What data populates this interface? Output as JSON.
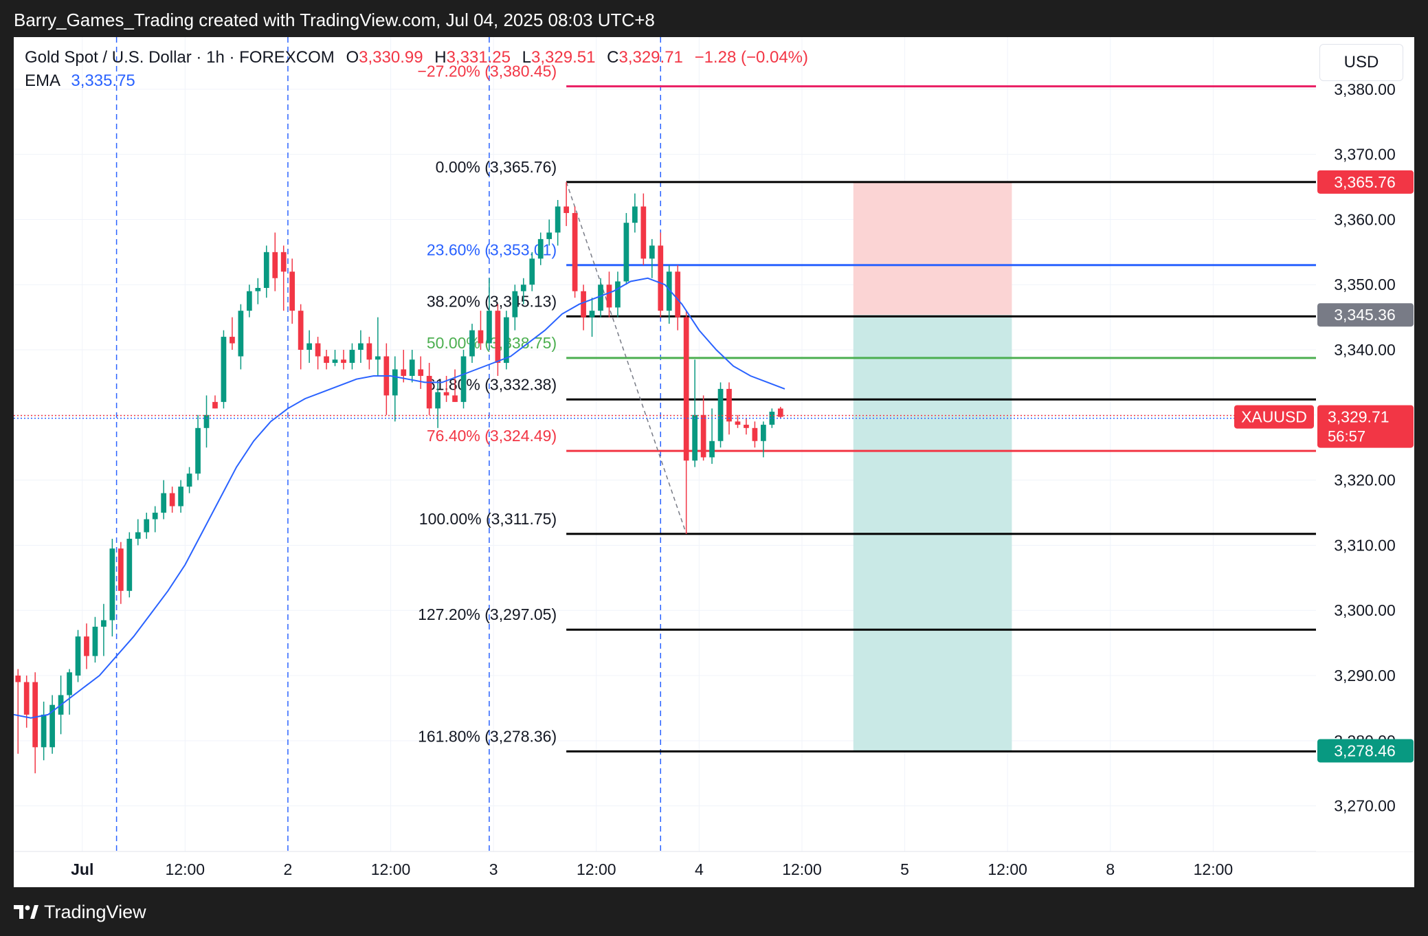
{
  "caption": "Barry_Games_Trading created with TradingView.com, Jul 04, 2025 08:03 UTC+8",
  "brand": "TradingView",
  "legend": {
    "symbol": "Gold Spot / U.S. Dollar · 1h · FOREXCOM",
    "o_label": "O",
    "o_value": "3,330.99",
    "h_label": "H",
    "h_value": "3,331.25",
    "l_label": "L",
    "l_value": "3,329.51",
    "c_label": "C",
    "c_value": "3,329.71",
    "change": "−1.28 (−0.04%)",
    "ema_label": "EMA",
    "ema_value": "3,335.75"
  },
  "currency": "USD",
  "colors": {
    "up": "#089981",
    "down": "#f23645",
    "ema": "#2962ff",
    "fib_black": "#000000",
    "fib_red": "#f23645",
    "fib_blue": "#2962ff",
    "fib_green": "#4caf50",
    "fib_pink": "#e91e63",
    "stop_zone": "#fbd4d4",
    "target_zone": "#c9e9e6"
  },
  "chart_data": {
    "type": "candlestick",
    "symbol": "XAUUSD",
    "timeframe": "1h",
    "y_axis": {
      "ticks": [
        "3,380.00",
        "3,370.00",
        "3,360.00",
        "3,350.00",
        "3,340.00",
        "3,330.00",
        "3,320.00",
        "3,310.00",
        "3,300.00",
        "3,290.00",
        "3,280.00",
        "3,270.00"
      ],
      "tick_values": [
        3380,
        3370,
        3360,
        3350,
        3340,
        3330,
        3320,
        3310,
        3300,
        3290,
        3280,
        3270
      ],
      "range": [
        3263,
        3388
      ]
    },
    "x_axis": {
      "ticks": [
        "Jul",
        "12:00",
        "2",
        "12:00",
        "3",
        "12:00",
        "4",
        "12:00",
        "5",
        "12:00",
        "8",
        "12:00"
      ],
      "tick_hours": [
        0,
        12,
        24,
        36,
        48,
        60,
        72,
        84,
        96,
        108,
        120,
        132
      ],
      "range_hours": [
        -8,
        144
      ]
    },
    "candles": [
      {
        "t": -7.5,
        "o": 3290.0,
        "h": 3291.0,
        "l": 3278.0,
        "c": 3289.0
      },
      {
        "t": -6.5,
        "o": 3289.0,
        "h": 3290.0,
        "l": 3282.0,
        "c": 3284.0
      },
      {
        "t": -5.5,
        "o": 3289.0,
        "h": 3290.5,
        "l": 3275.0,
        "c": 3279.0
      },
      {
        "t": -4.5,
        "o": 3279.0,
        "h": 3286.0,
        "l": 3277.0,
        "c": 3284.0
      },
      {
        "t": -3.5,
        "o": 3279.0,
        "h": 3287.0,
        "l": 3278.0,
        "c": 3285.5
      },
      {
        "t": -2.5,
        "o": 3284.0,
        "h": 3290.0,
        "l": 3281.0,
        "c": 3287.0
      },
      {
        "t": -1.5,
        "o": 3287.0,
        "h": 3291.0,
        "l": 3284.0,
        "c": 3290.5
      },
      {
        "t": -0.5,
        "o": 3290.0,
        "h": 3297.0,
        "l": 3289.0,
        "c": 3296.0
      },
      {
        "t": 0.5,
        "o": 3296.0,
        "h": 3298.0,
        "l": 3291.0,
        "c": 3293.0
      },
      {
        "t": 1.5,
        "o": 3293.0,
        "h": 3299.0,
        "l": 3292.0,
        "c": 3297.5
      },
      {
        "t": 2.5,
        "o": 3297.5,
        "h": 3301.0,
        "l": 3293.0,
        "c": 3298.5
      },
      {
        "t": 3.5,
        "o": 3298.5,
        "h": 3311.0,
        "l": 3296.0,
        "c": 3309.5
      },
      {
        "t": 4.5,
        "o": 3309.5,
        "h": 3310.5,
        "l": 3301.0,
        "c": 3303.0
      },
      {
        "t": 5.5,
        "o": 3303.0,
        "h": 3312.0,
        "l": 3302.0,
        "c": 3311.0
      },
      {
        "t": 6.5,
        "o": 3311.0,
        "h": 3314.0,
        "l": 3310.0,
        "c": 3312.0
      },
      {
        "t": 7.5,
        "o": 3312.0,
        "h": 3315.0,
        "l": 3311.0,
        "c": 3314.0
      },
      {
        "t": 8.5,
        "o": 3314.0,
        "h": 3316.0,
        "l": 3312.0,
        "c": 3315.0
      },
      {
        "t": 9.5,
        "o": 3315.0,
        "h": 3320.0,
        "l": 3314.0,
        "c": 3318.0
      },
      {
        "t": 10.5,
        "o": 3318.0,
        "h": 3319.0,
        "l": 3315.0,
        "c": 3316.0
      },
      {
        "t": 11.5,
        "o": 3316.0,
        "h": 3320.0,
        "l": 3315.0,
        "c": 3319.0
      },
      {
        "t": 12.5,
        "o": 3319.0,
        "h": 3322.0,
        "l": 3318.0,
        "c": 3321.0
      },
      {
        "t": 13.5,
        "o": 3321.0,
        "h": 3330.0,
        "l": 3320.0,
        "c": 3328.0
      },
      {
        "t": 14.5,
        "o": 3328.0,
        "h": 3333.0,
        "l": 3325.0,
        "c": 3330.0
      },
      {
        "t": 15.5,
        "o": 3332.0,
        "h": 3333.0,
        "l": 3331.0,
        "c": 3331.0
      },
      {
        "t": 16.5,
        "o": 3332.0,
        "h": 3343.0,
        "l": 3331.0,
        "c": 3342.0
      },
      {
        "t": 17.5,
        "o": 3342.0,
        "h": 3345.0,
        "l": 3340.0,
        "c": 3341.0
      },
      {
        "t": 18.5,
        "o": 3339.0,
        "h": 3347.0,
        "l": 3337.0,
        "c": 3346.0
      },
      {
        "t": 19.5,
        "o": 3346.0,
        "h": 3350.0,
        "l": 3345.0,
        "c": 3349.0
      },
      {
        "t": 20.5,
        "o": 3349.0,
        "h": 3351.0,
        "l": 3347.0,
        "c": 3349.5
      },
      {
        "t": 21.5,
        "o": 3349.5,
        "h": 3356.0,
        "l": 3348.0,
        "c": 3355.0
      },
      {
        "t": 22.5,
        "o": 3355.0,
        "h": 3358.0,
        "l": 3349.0,
        "c": 3351.0
      },
      {
        "t": 23.5,
        "o": 3355.0,
        "h": 3356.0,
        "l": 3346.0,
        "c": 3352.0
      },
      {
        "t": 24.5,
        "o": 3352.0,
        "h": 3354.0,
        "l": 3344.0,
        "c": 3346.0
      },
      {
        "t": 25.5,
        "o": 3346.0,
        "h": 3347.0,
        "l": 3337.0,
        "c": 3340.0
      },
      {
        "t": 26.5,
        "o": 3340.0,
        "h": 3343.0,
        "l": 3338.0,
        "c": 3341.0
      },
      {
        "t": 27.5,
        "o": 3341.0,
        "h": 3342.0,
        "l": 3337.0,
        "c": 3339.0
      },
      {
        "t": 28.5,
        "o": 3339.0,
        "h": 3340.0,
        "l": 3337.0,
        "c": 3338.0
      },
      {
        "t": 29.5,
        "o": 3338.0,
        "h": 3340.0,
        "l": 3337.5,
        "c": 3338.5
      },
      {
        "t": 30.5,
        "o": 3338.5,
        "h": 3340.0,
        "l": 3337.0,
        "c": 3338.0
      },
      {
        "t": 31.5,
        "o": 3338.0,
        "h": 3341.0,
        "l": 3337.0,
        "c": 3340.0
      },
      {
        "t": 32.5,
        "o": 3340.0,
        "h": 3343.0,
        "l": 3338.0,
        "c": 3341.0
      },
      {
        "t": 33.5,
        "o": 3341.0,
        "h": 3342.0,
        "l": 3337.0,
        "c": 3338.5
      },
      {
        "t": 34.5,
        "o": 3338.5,
        "h": 3345.0,
        "l": 3336.0,
        "c": 3339.0
      },
      {
        "t": 35.5,
        "o": 3339.0,
        "h": 3341.0,
        "l": 3330.0,
        "c": 3333.0
      },
      {
        "t": 36.5,
        "o": 3333.0,
        "h": 3339.0,
        "l": 3329.0,
        "c": 3337.0
      },
      {
        "t": 37.5,
        "o": 3337.0,
        "h": 3340.0,
        "l": 3335.0,
        "c": 3336.0
      },
      {
        "t": 38.5,
        "o": 3336.0,
        "h": 3340.0,
        "l": 3335.0,
        "c": 3338.5
      },
      {
        "t": 39.5,
        "o": 3337.0,
        "h": 3339.0,
        "l": 3334.0,
        "c": 3336.0
      },
      {
        "t": 40.5,
        "o": 3336.0,
        "h": 3338.0,
        "l": 3330.0,
        "c": 3331.0
      },
      {
        "t": 41.5,
        "o": 3331.0,
        "h": 3335.0,
        "l": 3328.0,
        "c": 3333.5
      },
      {
        "t": 42.5,
        "o": 3333.5,
        "h": 3336.0,
        "l": 3332.0,
        "c": 3333.0
      },
      {
        "t": 43.5,
        "o": 3333.0,
        "h": 3337.0,
        "l": 3332.0,
        "c": 3332.0
      },
      {
        "t": 44.5,
        "o": 3332.0,
        "h": 3340.0,
        "l": 3331.0,
        "c": 3339.0
      },
      {
        "t": 45.5,
        "o": 3339.0,
        "h": 3344.0,
        "l": 3338.0,
        "c": 3343.0
      },
      {
        "t": 46.5,
        "o": 3343.0,
        "h": 3346.0,
        "l": 3340.0,
        "c": 3341.0
      },
      {
        "t": 47.5,
        "o": 3341.0,
        "h": 3351.0,
        "l": 3340.0,
        "c": 3346.0
      },
      {
        "t": 48.5,
        "o": 3346.0,
        "h": 3347.0,
        "l": 3336.0,
        "c": 3338.0
      },
      {
        "t": 49.5,
        "o": 3338.0,
        "h": 3346.0,
        "l": 3337.0,
        "c": 3345.0
      },
      {
        "t": 50.5,
        "o": 3345.0,
        "h": 3350.0,
        "l": 3343.0,
        "c": 3349.0
      },
      {
        "t": 51.5,
        "o": 3349.0,
        "h": 3351.0,
        "l": 3347.0,
        "c": 3350.0
      },
      {
        "t": 52.5,
        "o": 3350.0,
        "h": 3355.0,
        "l": 3349.0,
        "c": 3354.0
      },
      {
        "t": 53.5,
        "o": 3354.0,
        "h": 3358.0,
        "l": 3353.0,
        "c": 3357.0
      },
      {
        "t": 54.5,
        "o": 3357.0,
        "h": 3360.0,
        "l": 3356.0,
        "c": 3358.0
      },
      {
        "t": 55.5,
        "o": 3358.0,
        "h": 3363.0,
        "l": 3356.0,
        "c": 3362.0
      },
      {
        "t": 56.5,
        "o": 3362.0,
        "h": 3365.76,
        "l": 3359.0,
        "c": 3361.0
      },
      {
        "t": 57.5,
        "o": 3361.0,
        "h": 3362.0,
        "l": 3348.0,
        "c": 3349.0
      },
      {
        "t": 58.5,
        "o": 3349.0,
        "h": 3350.0,
        "l": 3343.0,
        "c": 3345.0
      },
      {
        "t": 59.5,
        "o": 3345.0,
        "h": 3348.0,
        "l": 3342.0,
        "c": 3346.0
      },
      {
        "t": 60.5,
        "o": 3346.0,
        "h": 3351.0,
        "l": 3345.0,
        "c": 3350.0
      },
      {
        "t": 61.5,
        "o": 3350.0,
        "h": 3352.0,
        "l": 3345.0,
        "c": 3346.5
      },
      {
        "t": 62.5,
        "o": 3346.5,
        "h": 3352.0,
        "l": 3345.0,
        "c": 3350.5
      },
      {
        "t": 63.5,
        "o": 3350.5,
        "h": 3361.0,
        "l": 3350.0,
        "c": 3359.5
      },
      {
        "t": 64.5,
        "o": 3359.5,
        "h": 3364.0,
        "l": 3358.0,
        "c": 3362.0
      },
      {
        "t": 65.5,
        "o": 3362.0,
        "h": 3364.0,
        "l": 3353.0,
        "c": 3354.0
      },
      {
        "t": 66.5,
        "o": 3354.0,
        "h": 3357.0,
        "l": 3351.0,
        "c": 3356.0
      },
      {
        "t": 67.5,
        "o": 3356.0,
        "h": 3358.0,
        "l": 3345.0,
        "c": 3346.0
      },
      {
        "t": 68.5,
        "o": 3346.0,
        "h": 3353.0,
        "l": 3344.0,
        "c": 3352.0
      },
      {
        "t": 69.5,
        "o": 3352.0,
        "h": 3353.0,
        "l": 3343.0,
        "c": 3345.0
      },
      {
        "t": 70.5,
        "o": 3345.0,
        "h": 3346.0,
        "l": 3311.75,
        "c": 3323.0
      },
      {
        "t": 71.5,
        "o": 3323.0,
        "h": 3338.5,
        "l": 3322.0,
        "c": 3330.0
      },
      {
        "t": 72.5,
        "o": 3330.0,
        "h": 3333.0,
        "l": 3323.0,
        "c": 3323.5
      },
      {
        "t": 73.5,
        "o": 3323.5,
        "h": 3331.0,
        "l": 3322.5,
        "c": 3326.0
      },
      {
        "t": 74.5,
        "o": 3326.0,
        "h": 3335.0,
        "l": 3325.0,
        "c": 3334.0
      },
      {
        "t": 75.5,
        "o": 3334.0,
        "h": 3335.0,
        "l": 3327.0,
        "c": 3329.0
      },
      {
        "t": 76.5,
        "o": 3329.0,
        "h": 3330.0,
        "l": 3328.0,
        "c": 3328.5
      },
      {
        "t": 77.5,
        "o": 3328.5,
        "h": 3329.5,
        "l": 3327.0,
        "c": 3328.0
      },
      {
        "t": 78.5,
        "o": 3328.0,
        "h": 3329.0,
        "l": 3325.0,
        "c": 3326.0
      },
      {
        "t": 79.5,
        "o": 3326.0,
        "h": 3329.0,
        "l": 3323.5,
        "c": 3328.5
      },
      {
        "t": 80.5,
        "o": 3328.5,
        "h": 3331.0,
        "l": 3328.0,
        "c": 3330.5
      },
      {
        "t": 81.5,
        "o": 3330.99,
        "h": 3331.25,
        "l": 3329.51,
        "c": 3329.71
      }
    ],
    "ema": {
      "name": "EMA",
      "points": [
        [
          -8,
          3284.0
        ],
        [
          -6,
          3283.5
        ],
        [
          -4,
          3284.0
        ],
        [
          -2,
          3286.0
        ],
        [
          0,
          3288.0
        ],
        [
          2,
          3290.0
        ],
        [
          4,
          3293.0
        ],
        [
          6,
          3296.0
        ],
        [
          8,
          3299.5
        ],
        [
          10,
          3303.0
        ],
        [
          12,
          3307.0
        ],
        [
          14,
          3312.0
        ],
        [
          16,
          3317.0
        ],
        [
          18,
          3322.0
        ],
        [
          20,
          3326.0
        ],
        [
          22,
          3329.0
        ],
        [
          24,
          3331.0
        ],
        [
          26,
          3332.5
        ],
        [
          28,
          3333.5
        ],
        [
          30,
          3334.5
        ],
        [
          32,
          3335.5
        ],
        [
          34,
          3336.0
        ],
        [
          36,
          3336.0
        ],
        [
          38,
          3335.5
        ],
        [
          40,
          3335.0
        ],
        [
          42,
          3335.0
        ],
        [
          44,
          3336.0
        ],
        [
          46,
          3337.0
        ],
        [
          48,
          3338.0
        ],
        [
          50,
          3339.0
        ],
        [
          52,
          3341.0
        ],
        [
          54,
          3343.0
        ],
        [
          56,
          3345.5
        ],
        [
          58,
          3347.0
        ],
        [
          60,
          3348.0
        ],
        [
          62,
          3349.0
        ],
        [
          64,
          3350.5
        ],
        [
          66,
          3351.0
        ],
        [
          68,
          3350.0
        ],
        [
          70,
          3347.0
        ],
        [
          72,
          3343.0
        ],
        [
          74,
          3340.0
        ],
        [
          76,
          3337.5
        ],
        [
          78,
          3336.0
        ],
        [
          80,
          3335.0
        ],
        [
          82,
          3334.0
        ]
      ]
    },
    "fib_levels": [
      {
        "label": "−27.20% (3,380.45)",
        "value": 3380.45,
        "color": "#e91e63",
        "label_color": "#f23645"
      },
      {
        "label": "0.00% (3,365.76)",
        "value": 3365.76,
        "color": "#000000",
        "label_color": "#131722"
      },
      {
        "label": "23.60% (3,353.01)",
        "value": 3353.01,
        "color": "#2962ff",
        "label_color": "#2962ff"
      },
      {
        "label": "38.20% (3,345.13)",
        "value": 3345.13,
        "color": "#000000",
        "label_color": "#131722"
      },
      {
        "label": "50.00% (3,338.75)",
        "value": 3338.75,
        "color": "#4caf50",
        "label_color": "#4caf50"
      },
      {
        "label": "61.80% (3,332.38)",
        "value": 3332.38,
        "color": "#000000",
        "label_color": "#131722"
      },
      {
        "label": "76.40% (3,324.49)",
        "value": 3324.49,
        "color": "#f23645",
        "label_color": "#f23645"
      },
      {
        "label": "100.00% (3,311.75)",
        "value": 3311.75,
        "color": "#000000",
        "label_color": "#131722"
      },
      {
        "label": "127.20% (3,297.05)",
        "value": 3297.05,
        "color": "#000000",
        "label_color": "#131722"
      },
      {
        "label": "161.80% (3,278.36)",
        "value": 3278.36,
        "color": "#000000",
        "label_color": "#131722"
      }
    ],
    "fib_range_hours": [
      56.5,
      149
    ],
    "trend_line": {
      "from": [
        56.5,
        3365.76
      ],
      "to": [
        70.5,
        3311.75
      ]
    },
    "vertical_markers_hours": [
      4,
      24,
      47.5,
      67.5
    ],
    "position_tool": {
      "entry": 3345.36,
      "stop": 3365.76,
      "target": 3278.46,
      "start_hour": 90,
      "end_hour": 108.5
    },
    "price_labels": [
      {
        "text": "3,365.76",
        "value": 3365.76,
        "bg": "#f23645"
      },
      {
        "text": "3,345.36",
        "value": 3345.36,
        "bg": "#787b86"
      },
      {
        "text": "3,278.46",
        "value": 3278.46,
        "bg": "#089981"
      }
    ],
    "current_price": {
      "symbol": "XAUUSD",
      "price": "3,329.71",
      "value": 3329.71,
      "countdown": "56:57",
      "bg": "#f23645"
    }
  }
}
